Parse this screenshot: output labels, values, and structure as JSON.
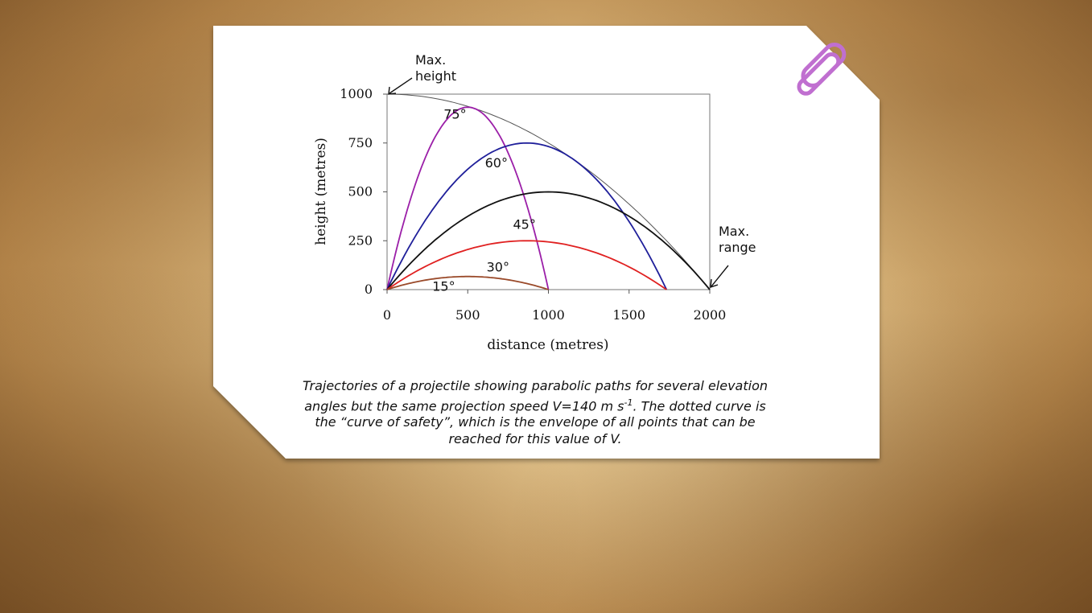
{
  "chart_data": {
    "type": "line",
    "xlabel": "distance (metres)",
    "ylabel": "height (metres)",
    "xlim": [
      0,
      2000
    ],
    "ylim": [
      0,
      1000
    ],
    "xticks": [
      "0",
      "500",
      "1000",
      "1500",
      "2000"
    ],
    "yticks": [
      "0",
      "250",
      "500",
      "750",
      "1000"
    ],
    "grid": false,
    "series": [
      {
        "name": "75°",
        "angle": 75,
        "color": "#9b1fa8",
        "range": 1000,
        "max_height": 933,
        "apex_x": 500
      },
      {
        "name": "60°",
        "angle": 60,
        "color": "#1f1f9a",
        "range": 1732,
        "max_height": 750,
        "apex_x": 866
      },
      {
        "name": "45°",
        "angle": 45,
        "color": "#111111",
        "range": 2000,
        "max_height": 500,
        "apex_x": 1000
      },
      {
        "name": "30°",
        "angle": 30,
        "color": "#e02020",
        "range": 1732,
        "max_height": 250,
        "apex_x": 866
      },
      {
        "name": "15°",
        "angle": 15,
        "color": "#9a4a2a",
        "range": 1000,
        "max_height": 67,
        "apex_x": 500
      }
    ],
    "envelope": {
      "color": "#555555",
      "y_at_0": 1000,
      "x_at_0": 2000
    },
    "annotations": [
      {
        "text_line1": "Max.",
        "text_line2": "height"
      },
      {
        "text_line1": "Max.",
        "text_line2": "range"
      }
    ]
  },
  "caption": {
    "line1": "Trajectories of a projectile showing parabolic paths for several elevation",
    "line2_a": "angles but the same projection speed  V=140  m s",
    "line2_sup": "-1",
    "line2_b": ".  The dotted curve is",
    "line3": "the “curve of safety”, which is the envelope of all points that can be",
    "line4": "reached for this value of  V."
  },
  "colors": {
    "paperclip": "#c06fd0",
    "card": "#ffffff"
  }
}
